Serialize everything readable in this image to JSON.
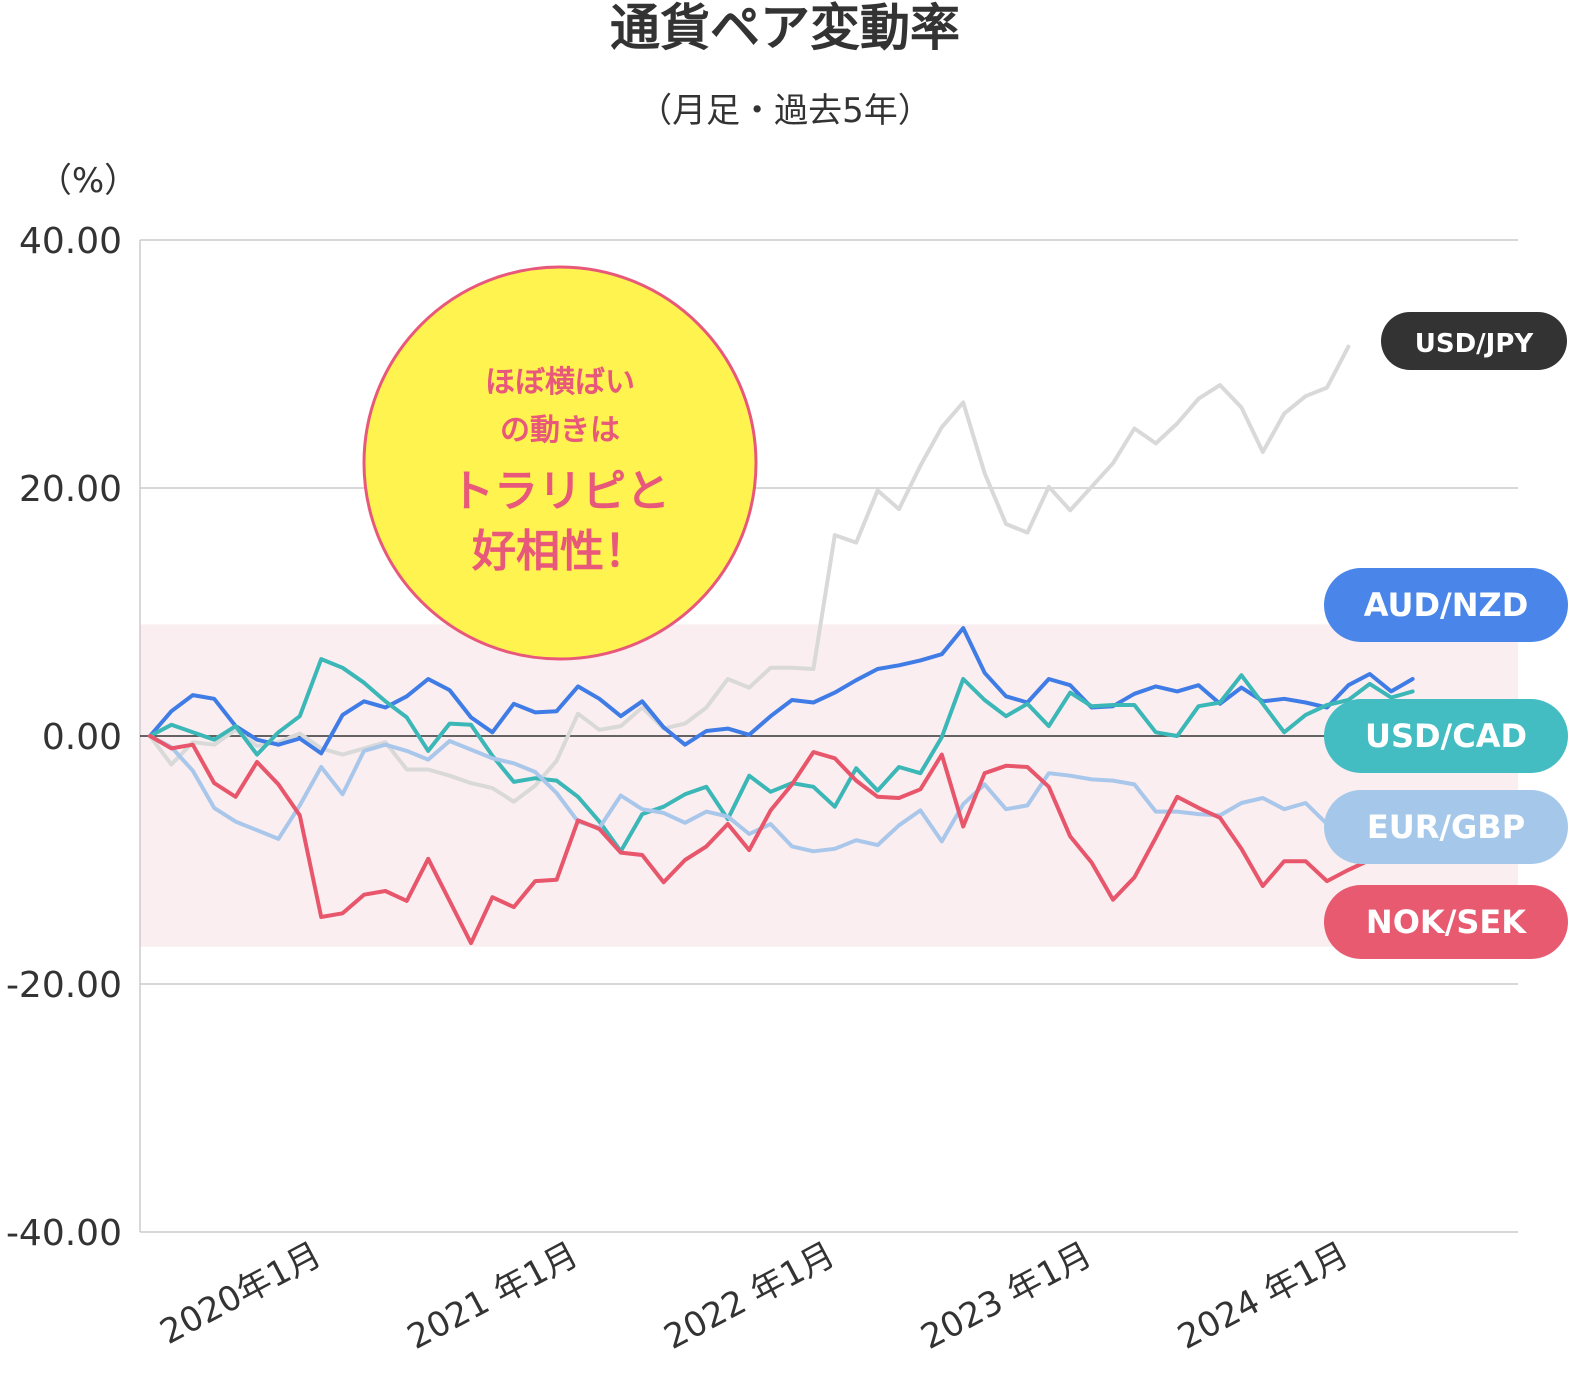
{
  "chart_data": {
    "type": "line",
    "title": "通貨ペア変動率",
    "subtitle": "（月足・過去5年）",
    "ylabel": "（%）",
    "ylim": [
      -40,
      40
    ],
    "yticks": [
      "40.00",
      "20.00",
      "0.00",
      "-20.00",
      "-40.00"
    ],
    "ytick_values": [
      40,
      20,
      0,
      -20,
      -40
    ],
    "xlim": [
      0,
      64
    ],
    "xticks": [
      "2020年1月",
      "2021 年1月",
      "2022 年1月",
      "2023 年1月",
      "2024 年1月"
    ],
    "xtick_positions": [
      7,
      19,
      31,
      43,
      55
    ],
    "band": [
      -17,
      9
    ],
    "grid": true,
    "callout": {
      "line1": "ほぼ横ばい",
      "line2": "の動きは",
      "line3": "トラリピと",
      "line4": "好相性！"
    },
    "series": [
      {
        "name": "USD/JPY",
        "color": "#d9d9d9",
        "label_color": "#333333",
        "values": [
          0,
          -2.3,
          -0.5,
          -0.7,
          0.5,
          -0.8,
          -0.5,
          0.2,
          -1,
          -1.5,
          -1,
          -0.5,
          -2.7,
          -2.7,
          -3.2,
          -3.8,
          -4.2,
          -5.3,
          -4,
          -2,
          1.8,
          0.5,
          0.8,
          2.3,
          0.6,
          1,
          2.3,
          4.6,
          3.9,
          5.5,
          5.5,
          5.4,
          16.2,
          15.6,
          19.8,
          18.3,
          21.8,
          24.9,
          26.9,
          21.2,
          17.1,
          16.4,
          20.1,
          18.2,
          20.1,
          22,
          24.8,
          23.6,
          25.2,
          27.2,
          28.3,
          26.5,
          22.9,
          26,
          27.4,
          28.1,
          31.4
        ]
      },
      {
        "name": "AUD/NZD",
        "color": "#3f7ce6",
        "label_color": "#4a86ea",
        "values": [
          0,
          2,
          3.3,
          3,
          0.8,
          -0.3,
          -0.7,
          -0.2,
          -1.4,
          1.7,
          2.8,
          2.3,
          3.2,
          4.6,
          3.7,
          1.5,
          0.3,
          2.6,
          1.9,
          2,
          4,
          3,
          1.6,
          2.8,
          0.7,
          -0.7,
          0.4,
          0.6,
          0.1,
          1.6,
          2.9,
          2.7,
          3.5,
          4.5,
          5.4,
          5.7,
          6.1,
          6.6,
          8.7,
          5.1,
          3.2,
          2.7,
          4.6,
          4.1,
          2.3,
          2.4,
          3.4,
          4,
          3.6,
          4.1,
          2.6,
          3.9,
          2.8,
          3,
          2.7,
          2.3,
          4.1,
          5,
          3.6,
          4.6
        ]
      },
      {
        "name": "USD/CAD",
        "color": "#3cb7b7",
        "label_color": "#43bcc2",
        "values": [
          0,
          0.9,
          0.3,
          -0.3,
          0.8,
          -1.5,
          0.3,
          1.6,
          6.2,
          5.5,
          4.3,
          2.8,
          1.5,
          -1.2,
          1,
          0.9,
          -1.6,
          -3.7,
          -3.4,
          -3.6,
          -4.9,
          -6.9,
          -9.3,
          -6.3,
          -5.7,
          -4.7,
          -4.1,
          -6.7,
          -3.2,
          -4.5,
          -3.8,
          -4.1,
          -5.7,
          -2.6,
          -4.4,
          -2.5,
          -3,
          -0.1,
          4.6,
          2.9,
          1.6,
          2.6,
          0.8,
          3.5,
          2.4,
          2.5,
          2.5,
          0.3,
          0,
          2.4,
          2.7,
          4.9,
          2.6,
          0.3,
          1.7,
          2.5,
          2.9,
          4.2,
          3.1,
          3.6
        ]
      },
      {
        "name": "EUR/GBP",
        "color": "#a9c7ea",
        "label_color": "#a5c8ea",
        "values": [
          0,
          -0.9,
          -2.8,
          -5.8,
          -6.9,
          -7.6,
          -8.3,
          -5.6,
          -2.5,
          -4.7,
          -1.2,
          -0.7,
          -1.2,
          -1.9,
          -0.4,
          -1.1,
          -1.8,
          -2.2,
          -2.9,
          -4.6,
          -6.9,
          -7.4,
          -4.8,
          -5.9,
          -6.2,
          -7,
          -6.1,
          -6.5,
          -7.9,
          -7.1,
          -8.9,
          -9.3,
          -9.1,
          -8.4,
          -8.8,
          -7.2,
          -6,
          -8.5,
          -5.5,
          -3.9,
          -5.9,
          -5.6,
          -3,
          -3.2,
          -3.5,
          -3.6,
          -3.9,
          -6.1,
          -6.1,
          -6.3,
          -6.4,
          -5.4,
          -5,
          -5.9,
          -5.4,
          -7.1,
          -6.8
        ]
      },
      {
        "name": "NOK/SEK",
        "color": "#e8566c",
        "label_color": "#e85a70",
        "values": [
          0,
          -1,
          -0.7,
          -3.8,
          -4.9,
          -2.1,
          -3.9,
          -6.4,
          -14.6,
          -14.3,
          -12.8,
          -12.5,
          -13.3,
          -9.9,
          -13.3,
          -16.7,
          -13,
          -13.8,
          -11.7,
          -11.6,
          -6.8,
          -7.5,
          -9.4,
          -9.6,
          -11.8,
          -10,
          -8.9,
          -7.1,
          -9.2,
          -6,
          -3.9,
          -1.3,
          -1.8,
          -3.6,
          -4.9,
          -5,
          -4.3,
          -1.5,
          -7.3,
          -3,
          -2.4,
          -2.5,
          -4.1,
          -8.1,
          -10.2,
          -13.2,
          -11.4,
          -8.2,
          -4.9,
          -5.8,
          -6.6,
          -9.1,
          -12.1,
          -10.1,
          -10.1,
          -11.7,
          -10.8,
          -10
        ]
      }
    ]
  }
}
